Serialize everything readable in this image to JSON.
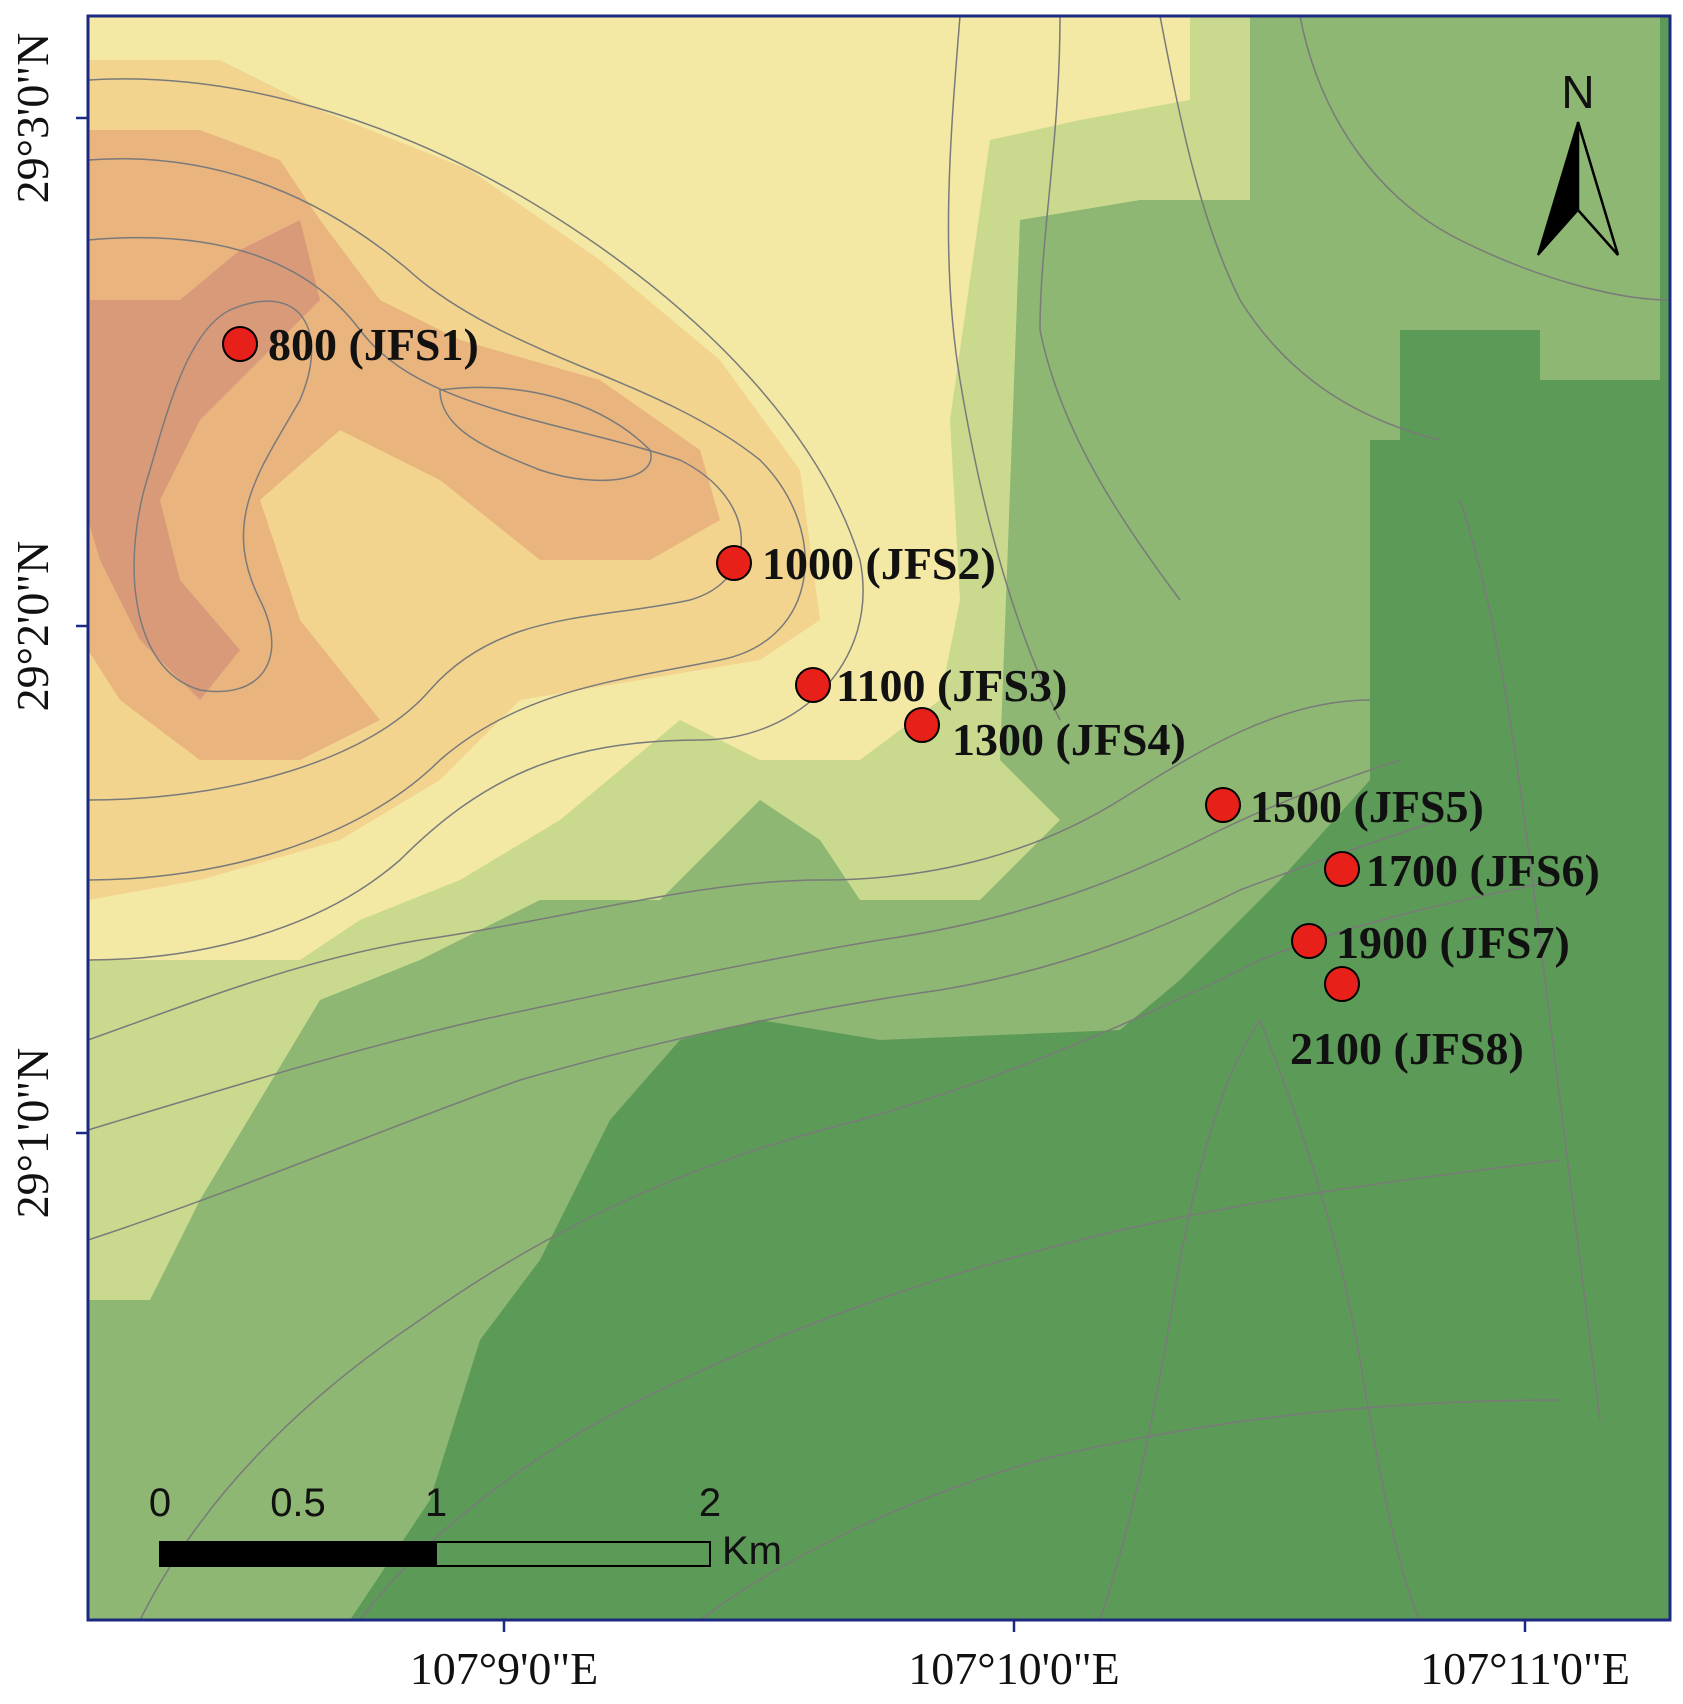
{
  "map": {
    "latitude_labels": [
      "29°3'0\"N",
      "29°2'0\"N",
      "29°1'0\"N"
    ],
    "longitude_labels": [
      "107°9'0\"E",
      "107°10'0\"E",
      "107°11'0\"E"
    ],
    "elevation_colors": [
      "#5c9a58",
      "#8db772",
      "#c9d98e",
      "#f3e9a4",
      "#f2d48e",
      "#e9b47e",
      "#d99a7a"
    ],
    "contour_color": "#7a7a7a",
    "sites": [
      {
        "label": "800 (JFS1)",
        "label_side": "right"
      },
      {
        "label": "1000 (JFS2)",
        "label_side": "right"
      },
      {
        "label": "1100 (JFS3)",
        "label_side": "right"
      },
      {
        "label": "1300 (JFS4)",
        "label_side": "below-right"
      },
      {
        "label": "1500 (JFS5)",
        "label_side": "right"
      },
      {
        "label": "1700 (JFS6)",
        "label_side": "right"
      },
      {
        "label": "1900 (JFS7)",
        "label_side": "right"
      },
      {
        "label": "2100 (JFS8)",
        "label_side": "below"
      }
    ],
    "site_marker_color": "#e8201a",
    "north_arrow": {
      "label": "N",
      "icon": "north-arrow-icon"
    },
    "scale_bar": {
      "ticks": [
        "0",
        "0.5",
        "1",
        "2"
      ],
      "unit": "Km"
    }
  }
}
